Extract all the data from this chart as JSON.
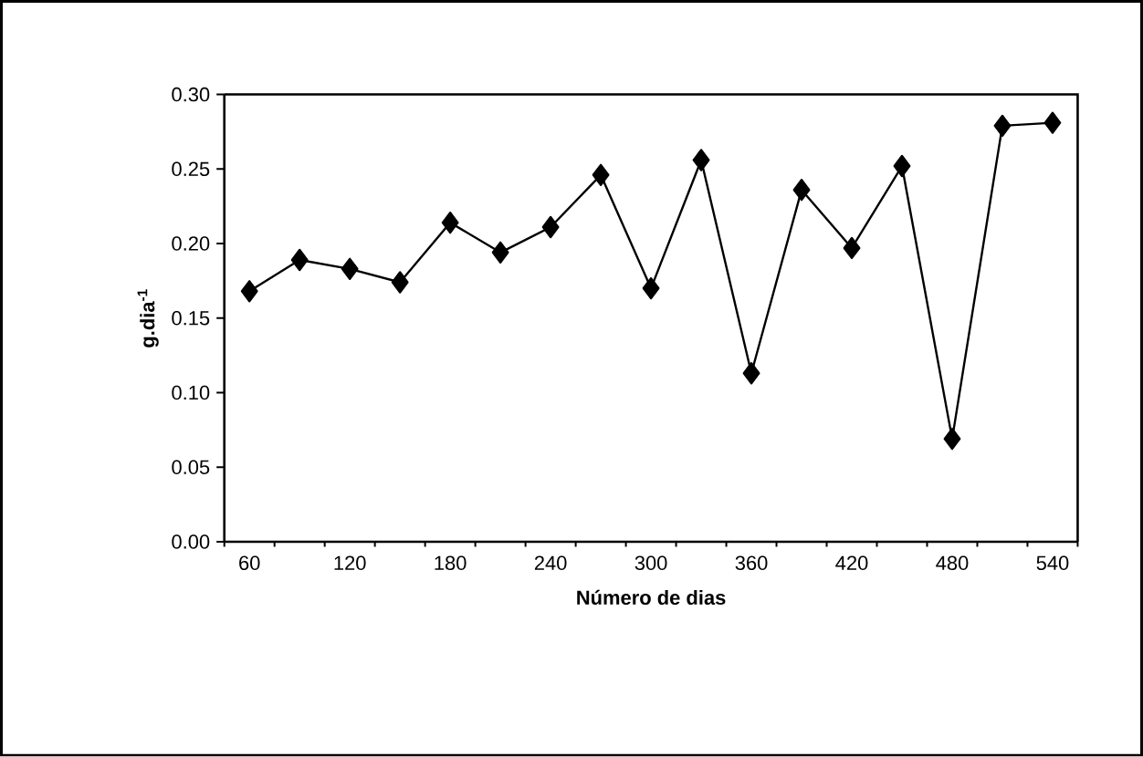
{
  "chart_data": {
    "type": "line",
    "xlabel": "Número de dias",
    "ylabel": "g.dia$^{-1}$",
    "categories": [
      "60",
      null,
      "120",
      null,
      "180",
      null,
      "240",
      null,
      "300",
      null,
      "360",
      null,
      "420",
      null,
      "480",
      null,
      "540"
    ],
    "series": [
      {
        "color": "#000000",
        "values": [
          0.168,
          0.189,
          0.183,
          0.174,
          0.214,
          0.194,
          0.211,
          0.246,
          0.17,
          0.256,
          0.113,
          0.236,
          0.197,
          0.252,
          0.069,
          0.279,
          0.281
        ]
      }
    ],
    "ylim": [
      0,
      0.3
    ],
    "yticks": [
      {
        "value": 0,
        "label": "0.00"
      },
      {
        "value": 0.05,
        "label": "0.05"
      },
      {
        "value": 0.1,
        "label": "0.10"
      },
      {
        "value": 0.15,
        "label": "0.15"
      },
      {
        "value": 0.2,
        "label": "0.20"
      },
      {
        "value": 0.25,
        "label": "0.25"
      },
      {
        "value": 0.3,
        "label": "0.30"
      }
    ],
    "marker": "diamond",
    "line_style": "solid",
    "grid": false
  }
}
